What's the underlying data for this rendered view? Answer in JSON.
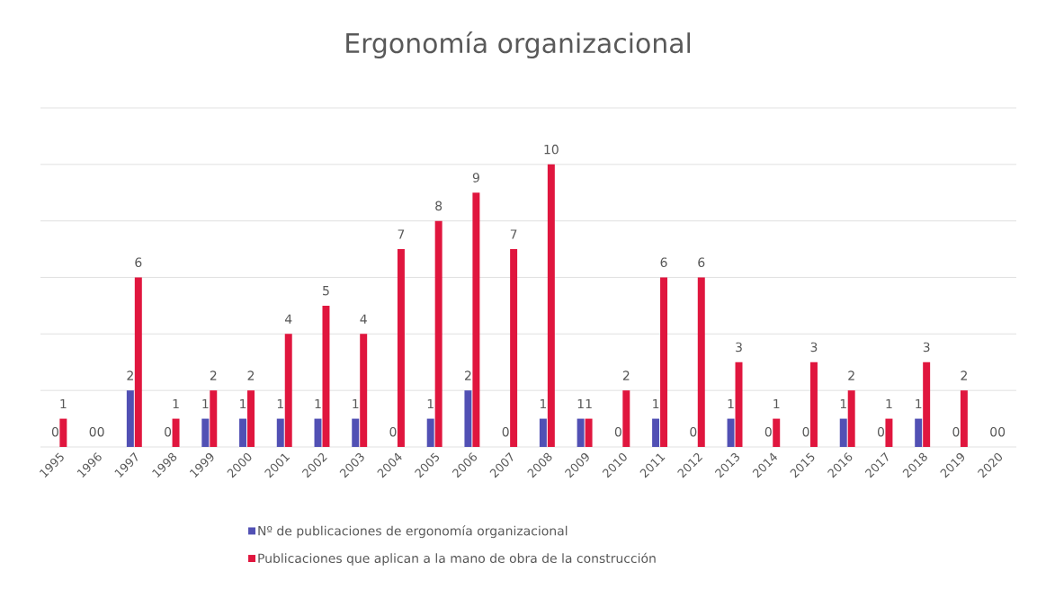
{
  "chart_data": {
    "type": "bar",
    "title": "Ergonomía organizacional",
    "categories": [
      "1995",
      "1996",
      "1997",
      "1998",
      "1999",
      "2000",
      "2001",
      "2002",
      "2003",
      "2004",
      "2005",
      "2006",
      "2007",
      "2008",
      "2009",
      "2010",
      "2011",
      "2012",
      "2013",
      "2014",
      "2015",
      "2016",
      "2017",
      "2018",
      "2019",
      "2020"
    ],
    "series": [
      {
        "name": "Nº de publicaciones de ergonomía organizacional",
        "color": "#5150b4",
        "values": [
          0,
          0,
          2,
          0,
          1,
          1,
          1,
          1,
          1,
          0,
          1,
          2,
          0,
          1,
          1,
          0,
          1,
          0,
          1,
          0,
          0,
          1,
          0,
          1,
          0,
          0
        ]
      },
      {
        "name": "Publicaciones que aplican a la mano de obra de la construcción",
        "color": "#e0163e",
        "values": [
          1,
          0,
          6,
          1,
          2,
          2,
          4,
          5,
          4,
          7,
          8,
          9,
          7,
          10,
          1,
          2,
          6,
          6,
          3,
          1,
          3,
          2,
          1,
          3,
          2,
          0
        ]
      }
    ],
    "ylim": [
      0,
      12
    ],
    "yticks": [
      {
        "value": 0,
        "label": null
      },
      {
        "value": 2,
        "label": null
      },
      {
        "value": 4,
        "label": null
      },
      {
        "value": 6,
        "label": null
      },
      {
        "value": 8,
        "label": null
      },
      {
        "value": 10,
        "label": null
      },
      {
        "value": 12,
        "label": null
      }
    ],
    "tick_labels": "x",
    "grid": "y",
    "data_labels": true,
    "legend": "bottom"
  }
}
